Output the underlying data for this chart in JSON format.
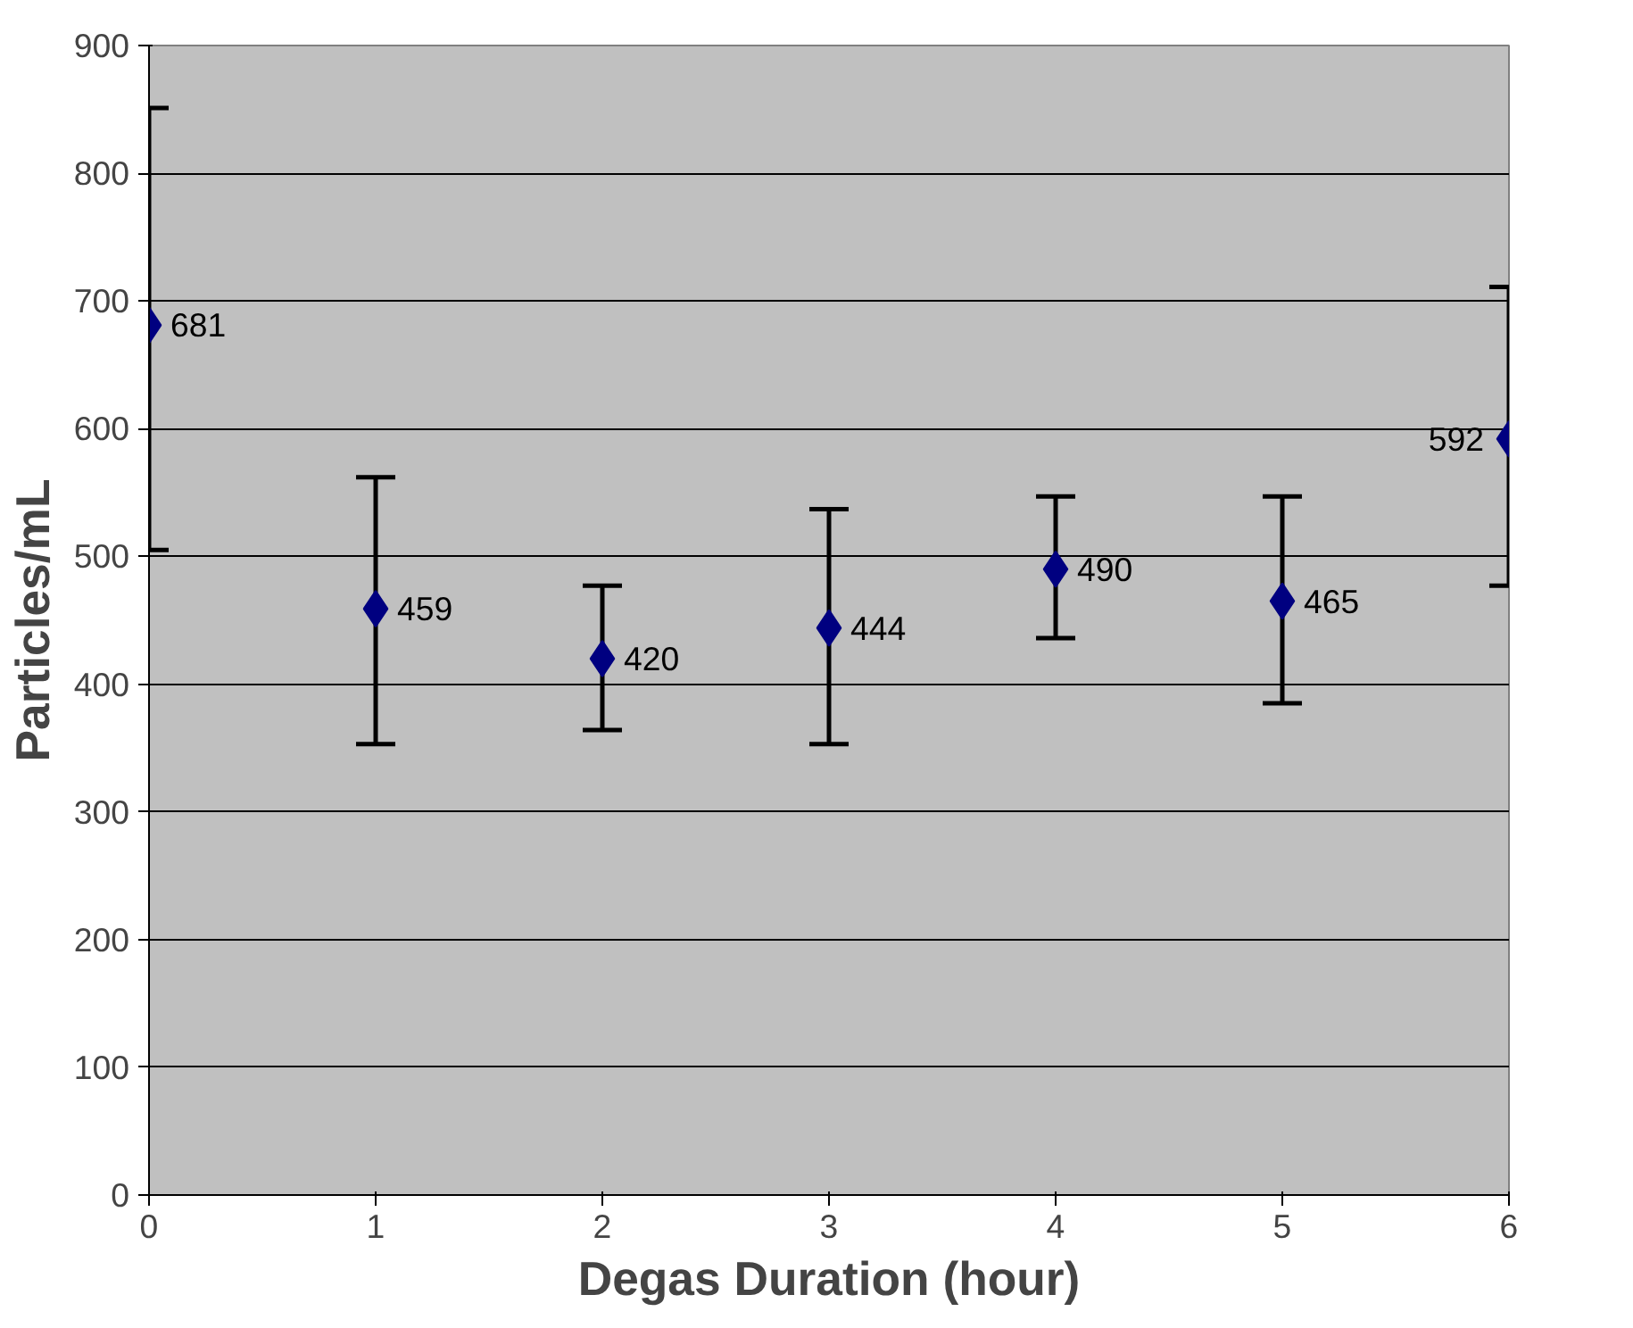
{
  "chart_data": {
    "type": "scatter",
    "xlabel": "Degas Duration (hour)",
    "ylabel": "Particles/mL",
    "x": [
      0,
      1,
      2,
      3,
      4,
      5,
      6
    ],
    "series": [
      {
        "color": "#000080",
        "values": [
          681,
          459,
          420,
          444,
          490,
          465,
          592
        ],
        "errors": [
          [
            505,
            851
          ],
          [
            353,
            562
          ],
          [
            364,
            477
          ],
          [
            353,
            537
          ],
          [
            436,
            547
          ],
          [
            385,
            547
          ],
          [
            477,
            711
          ]
        ]
      }
    ],
    "data_labels": true,
    "marker": "diamond",
    "grid": "y",
    "xlim": [
      0,
      6
    ],
    "xticks": [
      0,
      1,
      2,
      3,
      4,
      5,
      6
    ],
    "ylim": [
      0,
      900
    ],
    "yticks": [
      0,
      100,
      200,
      300,
      400,
      500,
      600,
      700,
      800,
      900
    ]
  }
}
